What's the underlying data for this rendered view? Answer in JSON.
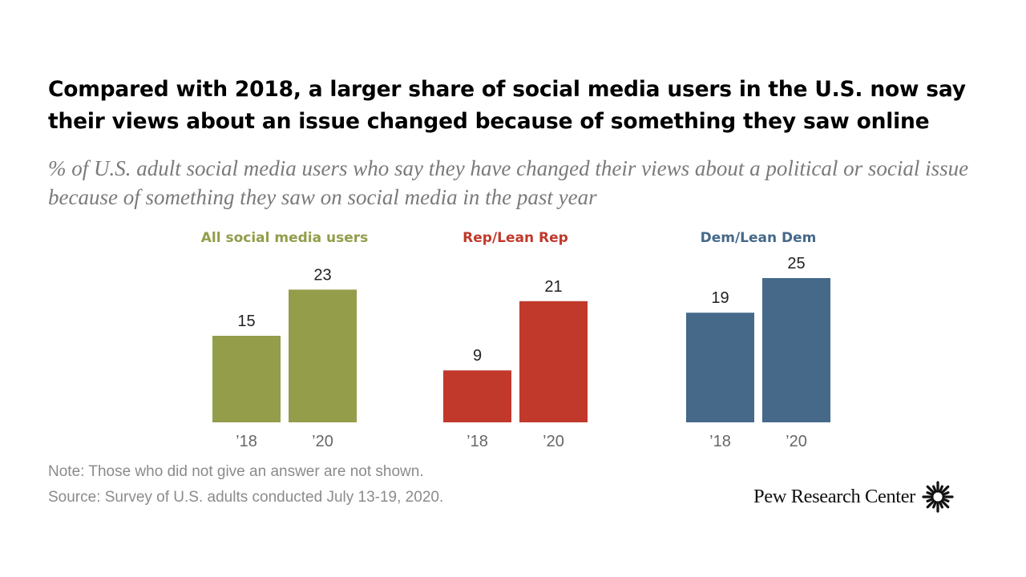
{
  "title": "Compared with 2018, a larger share of social media users in the U.S. now say their views about an issue changed because of something they saw online",
  "subtitle": "% of U.S. adult social media users who say they have changed their views about a political or social issue because of something they saw on social media in the past year",
  "chart_data": {
    "type": "bar",
    "categories": [
      "’18",
      "’20"
    ],
    "ylim": [
      0,
      25
    ],
    "grid": false,
    "groups": [
      {
        "name": "All social media users",
        "color": "#939d4a",
        "values": [
          15,
          23
        ]
      },
      {
        "name": "Rep/Lean Rep",
        "color": "#c0392b",
        "values": [
          9,
          21
        ]
      },
      {
        "name": "Dem/Lean Dem",
        "color": "#46698a",
        "values": [
          19,
          25
        ]
      }
    ]
  },
  "note": "Note: Those who did not give an answer are not shown.",
  "source": "Source: Survey of U.S. adults conducted July 13-19, 2020.",
  "logo": {
    "text": "Pew Research Center",
    "icon": "pew-sunburst-icon"
  }
}
